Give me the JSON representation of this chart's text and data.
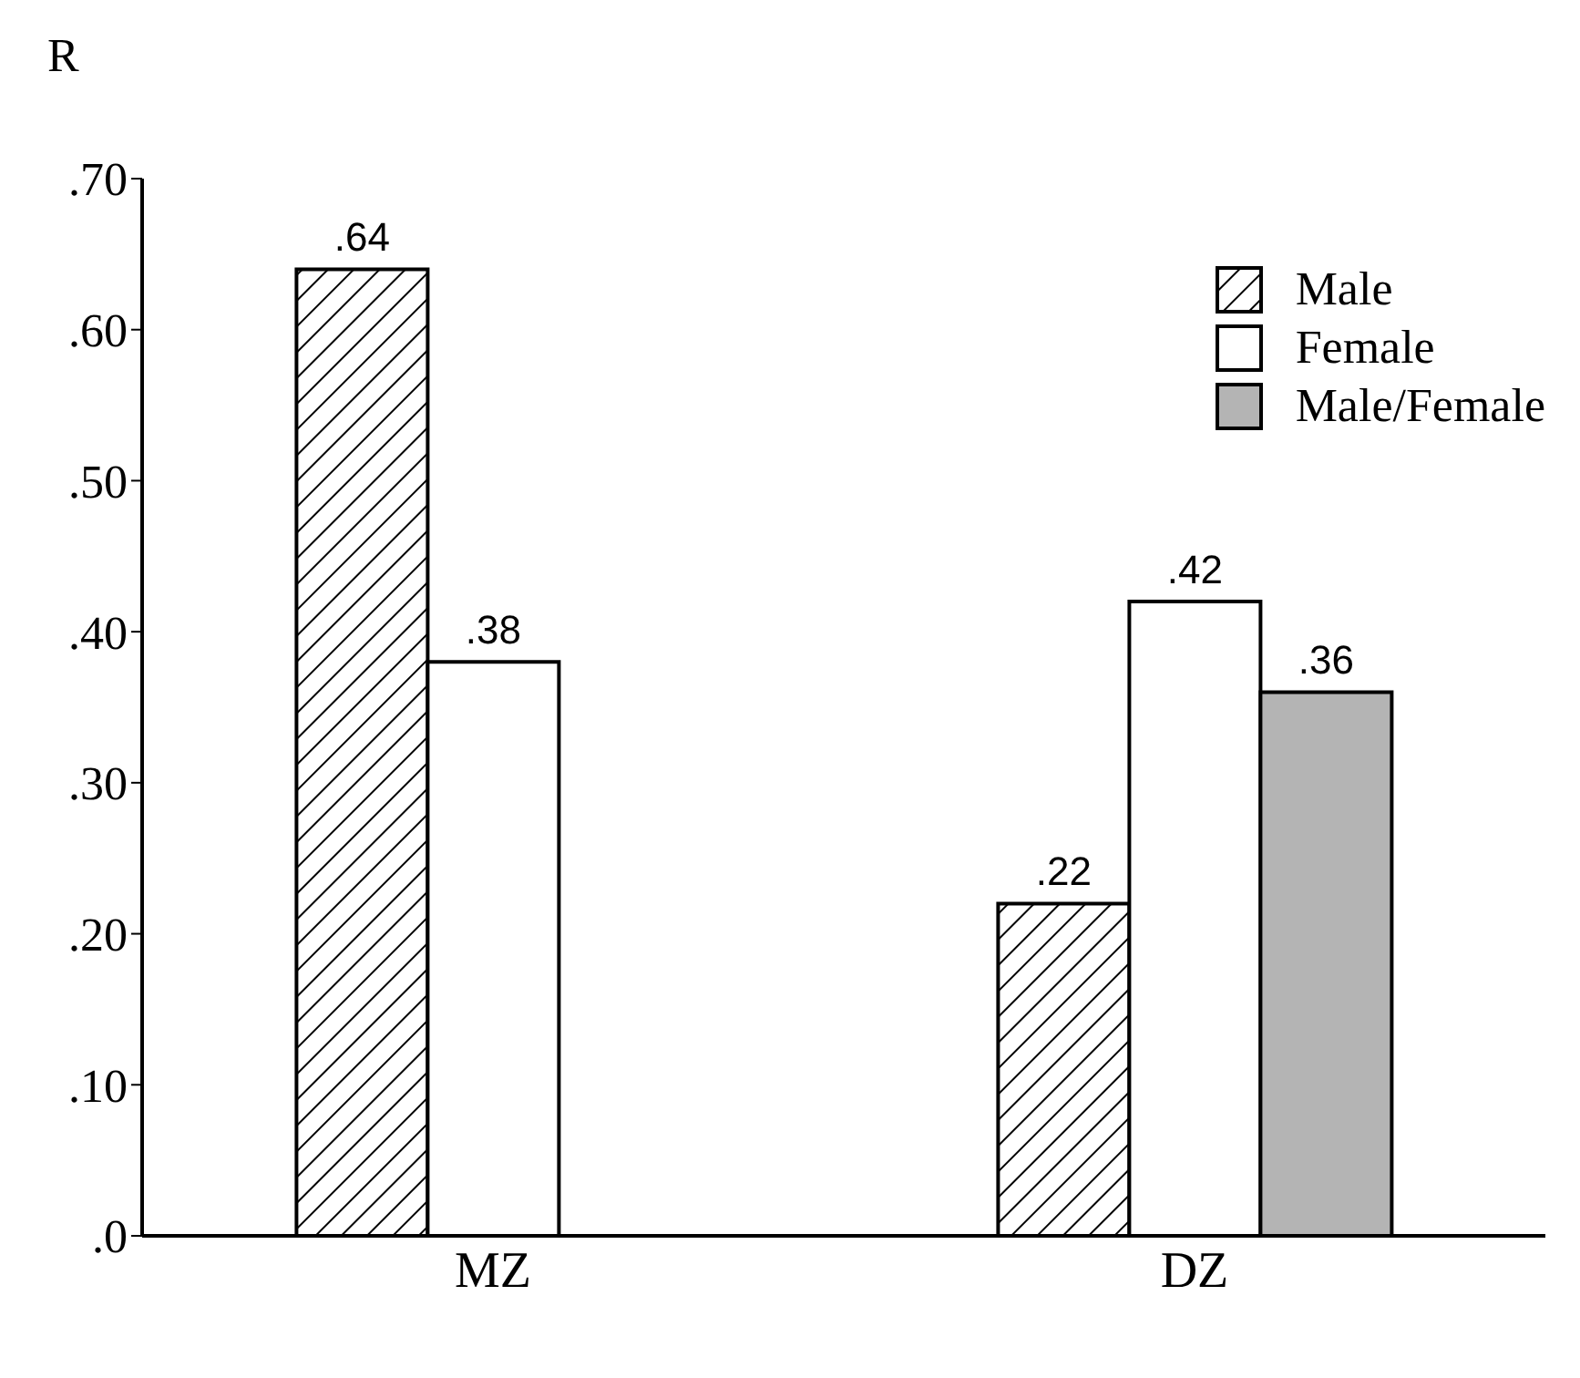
{
  "chart_data": {
    "type": "bar",
    "ylabel": "R",
    "categories": [
      "MZ",
      "DZ"
    ],
    "series": [
      {
        "name": "Male",
        "color": "#000000",
        "values": [
          0.64,
          0.22
        ],
        "value_labels": [
          ".64",
          ".22"
        ]
      },
      {
        "name": "Female",
        "color": "#ffffff",
        "values": [
          0.38,
          0.42
        ],
        "value_labels": [
          ".38",
          ".42"
        ]
      },
      {
        "name": "Male/Female",
        "color": "#b4b4b4",
        "values": [
          null,
          0.36
        ],
        "value_labels": [
          null,
          ".36"
        ]
      }
    ],
    "ylim": [
      0,
      0.7
    ],
    "yticks": [
      {
        "value": 0,
        "label": ".0"
      },
      {
        "value": 0.1,
        "label": ".10"
      },
      {
        "value": 0.2,
        "label": ".20"
      },
      {
        "value": 0.3,
        "label": ".30"
      },
      {
        "value": 0.4,
        "label": ".40"
      },
      {
        "value": 0.5,
        "label": ".50"
      },
      {
        "value": 0.6,
        "label": ".60"
      },
      {
        "value": 0.7,
        "label": ".70"
      }
    ],
    "legend": "top right",
    "grid": false
  }
}
